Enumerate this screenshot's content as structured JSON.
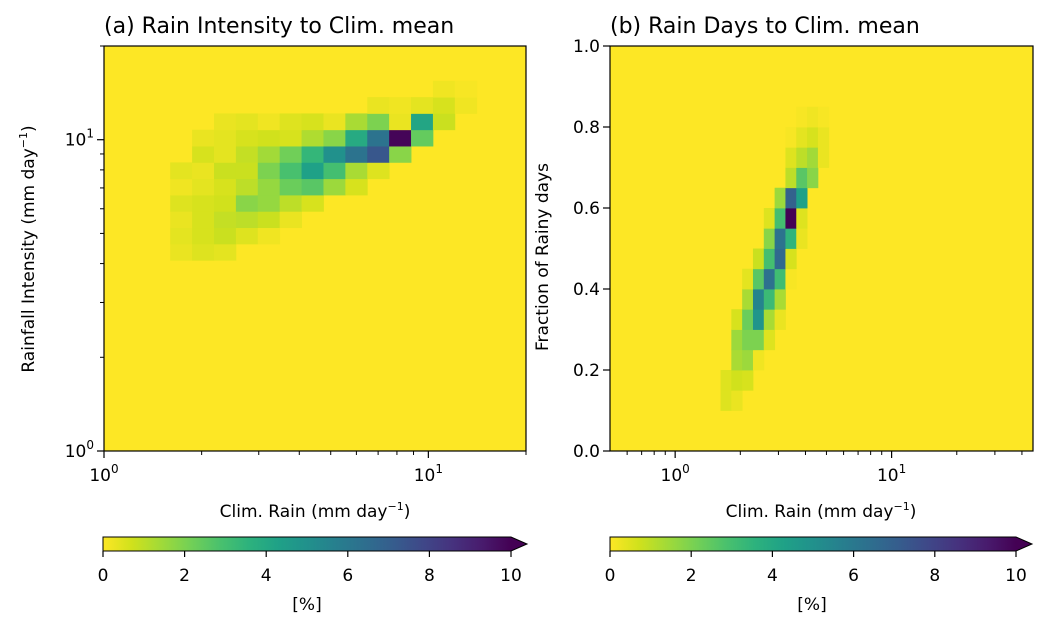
{
  "colors": {
    "background": "#fde725",
    "viridis": [
      "#fde725",
      "#d0e11c",
      "#a0da39",
      "#73d056",
      "#4ac16d",
      "#2db27d",
      "#1fa187",
      "#21918c",
      "#277f8e",
      "#2e6e8e",
      "#365c8d",
      "#3f4788",
      "#46327e",
      "#481b6d",
      "#440154"
    ]
  },
  "chart_data": [
    {
      "id": "a",
      "type": "heatmap",
      "title": "(a) Rain Intensity to Clim. mean",
      "xlabel": "Clim. Rain (mm day$^{-1}$)",
      "xlabel_main": "Clim. Rain (mm day",
      "xlabel_sup": "−1",
      "xlabel_end": ")",
      "ylabel_main": "Rainfall Intensity (mm day",
      "ylabel_sup": "−1",
      "ylabel_end": ")",
      "xscale": "log",
      "yscale": "log",
      "xlim": [
        1,
        20
      ],
      "ylim": [
        1,
        20
      ],
      "xticks": [
        {
          "base": "10",
          "exp": "0",
          "value": 1
        },
        {
          "base": "10",
          "exp": "1",
          "value": 10
        }
      ],
      "yticks": [
        {
          "base": "10",
          "exp": "0",
          "value": 1
        },
        {
          "base": "10",
          "exp": "1",
          "value": 10
        }
      ],
      "bin_x_start": 1.6,
      "bin_x_step_log10": 0.0675,
      "bin_y_start": 4.1,
      "bin_y_step_log10": 0.0524,
      "nx": 14,
      "ny": 13,
      "unit": "%",
      "values": [
        [
          0.3,
          0.5,
          0.4,
          0,
          0,
          0,
          0,
          0,
          0,
          0,
          0,
          0,
          0,
          0
        ],
        [
          0.4,
          0.6,
          0.8,
          0.5,
          0.2,
          0,
          0,
          0,
          0,
          0,
          0,
          0,
          0,
          0
        ],
        [
          0.3,
          0.6,
          0.9,
          1.0,
          0.8,
          0.3,
          0,
          0,
          0,
          0,
          0,
          0,
          0,
          0
        ],
        [
          0.5,
          0.6,
          0.7,
          1.8,
          1.6,
          1.0,
          0.6,
          0,
          0,
          0,
          0,
          0,
          0,
          0
        ],
        [
          0.2,
          0.4,
          0.6,
          1.0,
          1.6,
          2.3,
          2.6,
          1.5,
          0.6,
          0,
          0,
          0,
          0,
          0
        ],
        [
          0.4,
          0.3,
          0.8,
          0.8,
          2.0,
          2.9,
          4.3,
          3.0,
          1.3,
          0.5,
          0,
          0,
          0,
          0
        ],
        [
          0.0,
          0.6,
          0.4,
          0.9,
          1.4,
          2.2,
          3.4,
          5.0,
          6.2,
          7.3,
          1.8,
          0,
          0,
          0
        ],
        [
          0,
          0.3,
          0.4,
          0.6,
          0.7,
          0.6,
          1.2,
          1.8,
          3.9,
          6.2,
          9.9,
          2.4,
          0,
          0
        ],
        [
          0,
          0,
          0.3,
          0.4,
          0.2,
          0.5,
          0.6,
          0.3,
          1.3,
          2.0,
          0.3,
          4.1,
          0.8,
          0
        ],
        [
          0,
          0,
          0,
          0,
          0,
          0,
          0,
          0,
          0,
          0.3,
          0.2,
          0.4,
          0.6,
          0.2
        ],
        [
          0,
          0,
          0,
          0,
          0,
          0,
          0,
          0,
          0,
          0,
          0,
          0,
          0.2,
          0.1
        ],
        [
          0,
          0,
          0,
          0,
          0,
          0,
          0,
          0,
          0,
          0,
          0,
          0,
          0,
          0
        ],
        [
          0,
          0,
          0,
          0,
          0,
          0,
          0,
          0,
          0,
          0,
          0,
          0,
          0,
          0
        ]
      ],
      "colorbar": {
        "label": "[%]",
        "ticks": [
          "0",
          "2",
          "4",
          "6",
          "8",
          "10"
        ],
        "range": [
          0,
          10
        ],
        "extend": "max"
      }
    },
    {
      "id": "b",
      "type": "heatmap",
      "title": "(b) Rain Days to Clim. mean",
      "xlabel": "Clim. Rain (mm day$^{-1}$)",
      "xlabel_main": "Clim. Rain (mm day",
      "xlabel_sup": "−1",
      "xlabel_end": ")",
      "ylabel": "Fraction of Rainy days",
      "xscale": "log",
      "yscale": "linear",
      "xlim": [
        0.5,
        45
      ],
      "ylim": [
        0,
        1
      ],
      "xticks": [
        {
          "base": "10",
          "exp": "0",
          "value": 1
        },
        {
          "base": "10",
          "exp": "1",
          "value": 10
        }
      ],
      "yticks": [
        "0.0",
        "0.2",
        "0.4",
        "0.6",
        "0.8",
        "1.0"
      ],
      "ytick_values": [
        0,
        0.2,
        0.4,
        0.6,
        0.8,
        1.0
      ],
      "bin_x_start": 1.62,
      "bin_x_step_log10": 0.05,
      "bin_y_start": 0.1,
      "bin_y_step": 0.05,
      "nx": 10,
      "ny": 15,
      "unit": "%",
      "values": [
        [
          0.5,
          0.3,
          0,
          0,
          0,
          0,
          0,
          0,
          0,
          0
        ],
        [
          0.5,
          0.7,
          0.6,
          0,
          0,
          0,
          0,
          0,
          0,
          0
        ],
        [
          0,
          1.3,
          1.5,
          0.2,
          0,
          0,
          0,
          0,
          0,
          0
        ],
        [
          0,
          1.5,
          2.0,
          2.0,
          0.5,
          0,
          0,
          0,
          0,
          0
        ],
        [
          0,
          0.6,
          2.3,
          4.8,
          1.3,
          0.3,
          0,
          0,
          0,
          0
        ],
        [
          0,
          0,
          1.3,
          5.5,
          3.2,
          1.3,
          0,
          0,
          0,
          0
        ],
        [
          0,
          0,
          0.4,
          2.6,
          6.3,
          3.1,
          0.1,
          0,
          0,
          0
        ],
        [
          0,
          0,
          0,
          0.8,
          3.0,
          6.6,
          0.6,
          0,
          0,
          0
        ],
        [
          0,
          0,
          0,
          0,
          1.8,
          6.2,
          3.5,
          0.3,
          0,
          0
        ],
        [
          0,
          0,
          0,
          0,
          0.5,
          3.0,
          10.0,
          0.5,
          0,
          0
        ],
        [
          0,
          0,
          0,
          0,
          0,
          1.5,
          6.9,
          4.3,
          0,
          0
        ],
        [
          0,
          0,
          0,
          0,
          0,
          0,
          1.0,
          2.6,
          1.8,
          0
        ],
        [
          0,
          0,
          0,
          0,
          0,
          0,
          0.5,
          1.0,
          1.4,
          0.3
        ],
        [
          0,
          0,
          0,
          0,
          0,
          0,
          0.1,
          0.4,
          0.6,
          0.3
        ],
        [
          0,
          0,
          0,
          0,
          0,
          0,
          0,
          0.1,
          0.2,
          0.1
        ]
      ],
      "colorbar": {
        "label": "[%]",
        "ticks": [
          "0",
          "2",
          "4",
          "6",
          "8",
          "10"
        ],
        "range": [
          0,
          10
        ],
        "extend": "max"
      }
    }
  ]
}
